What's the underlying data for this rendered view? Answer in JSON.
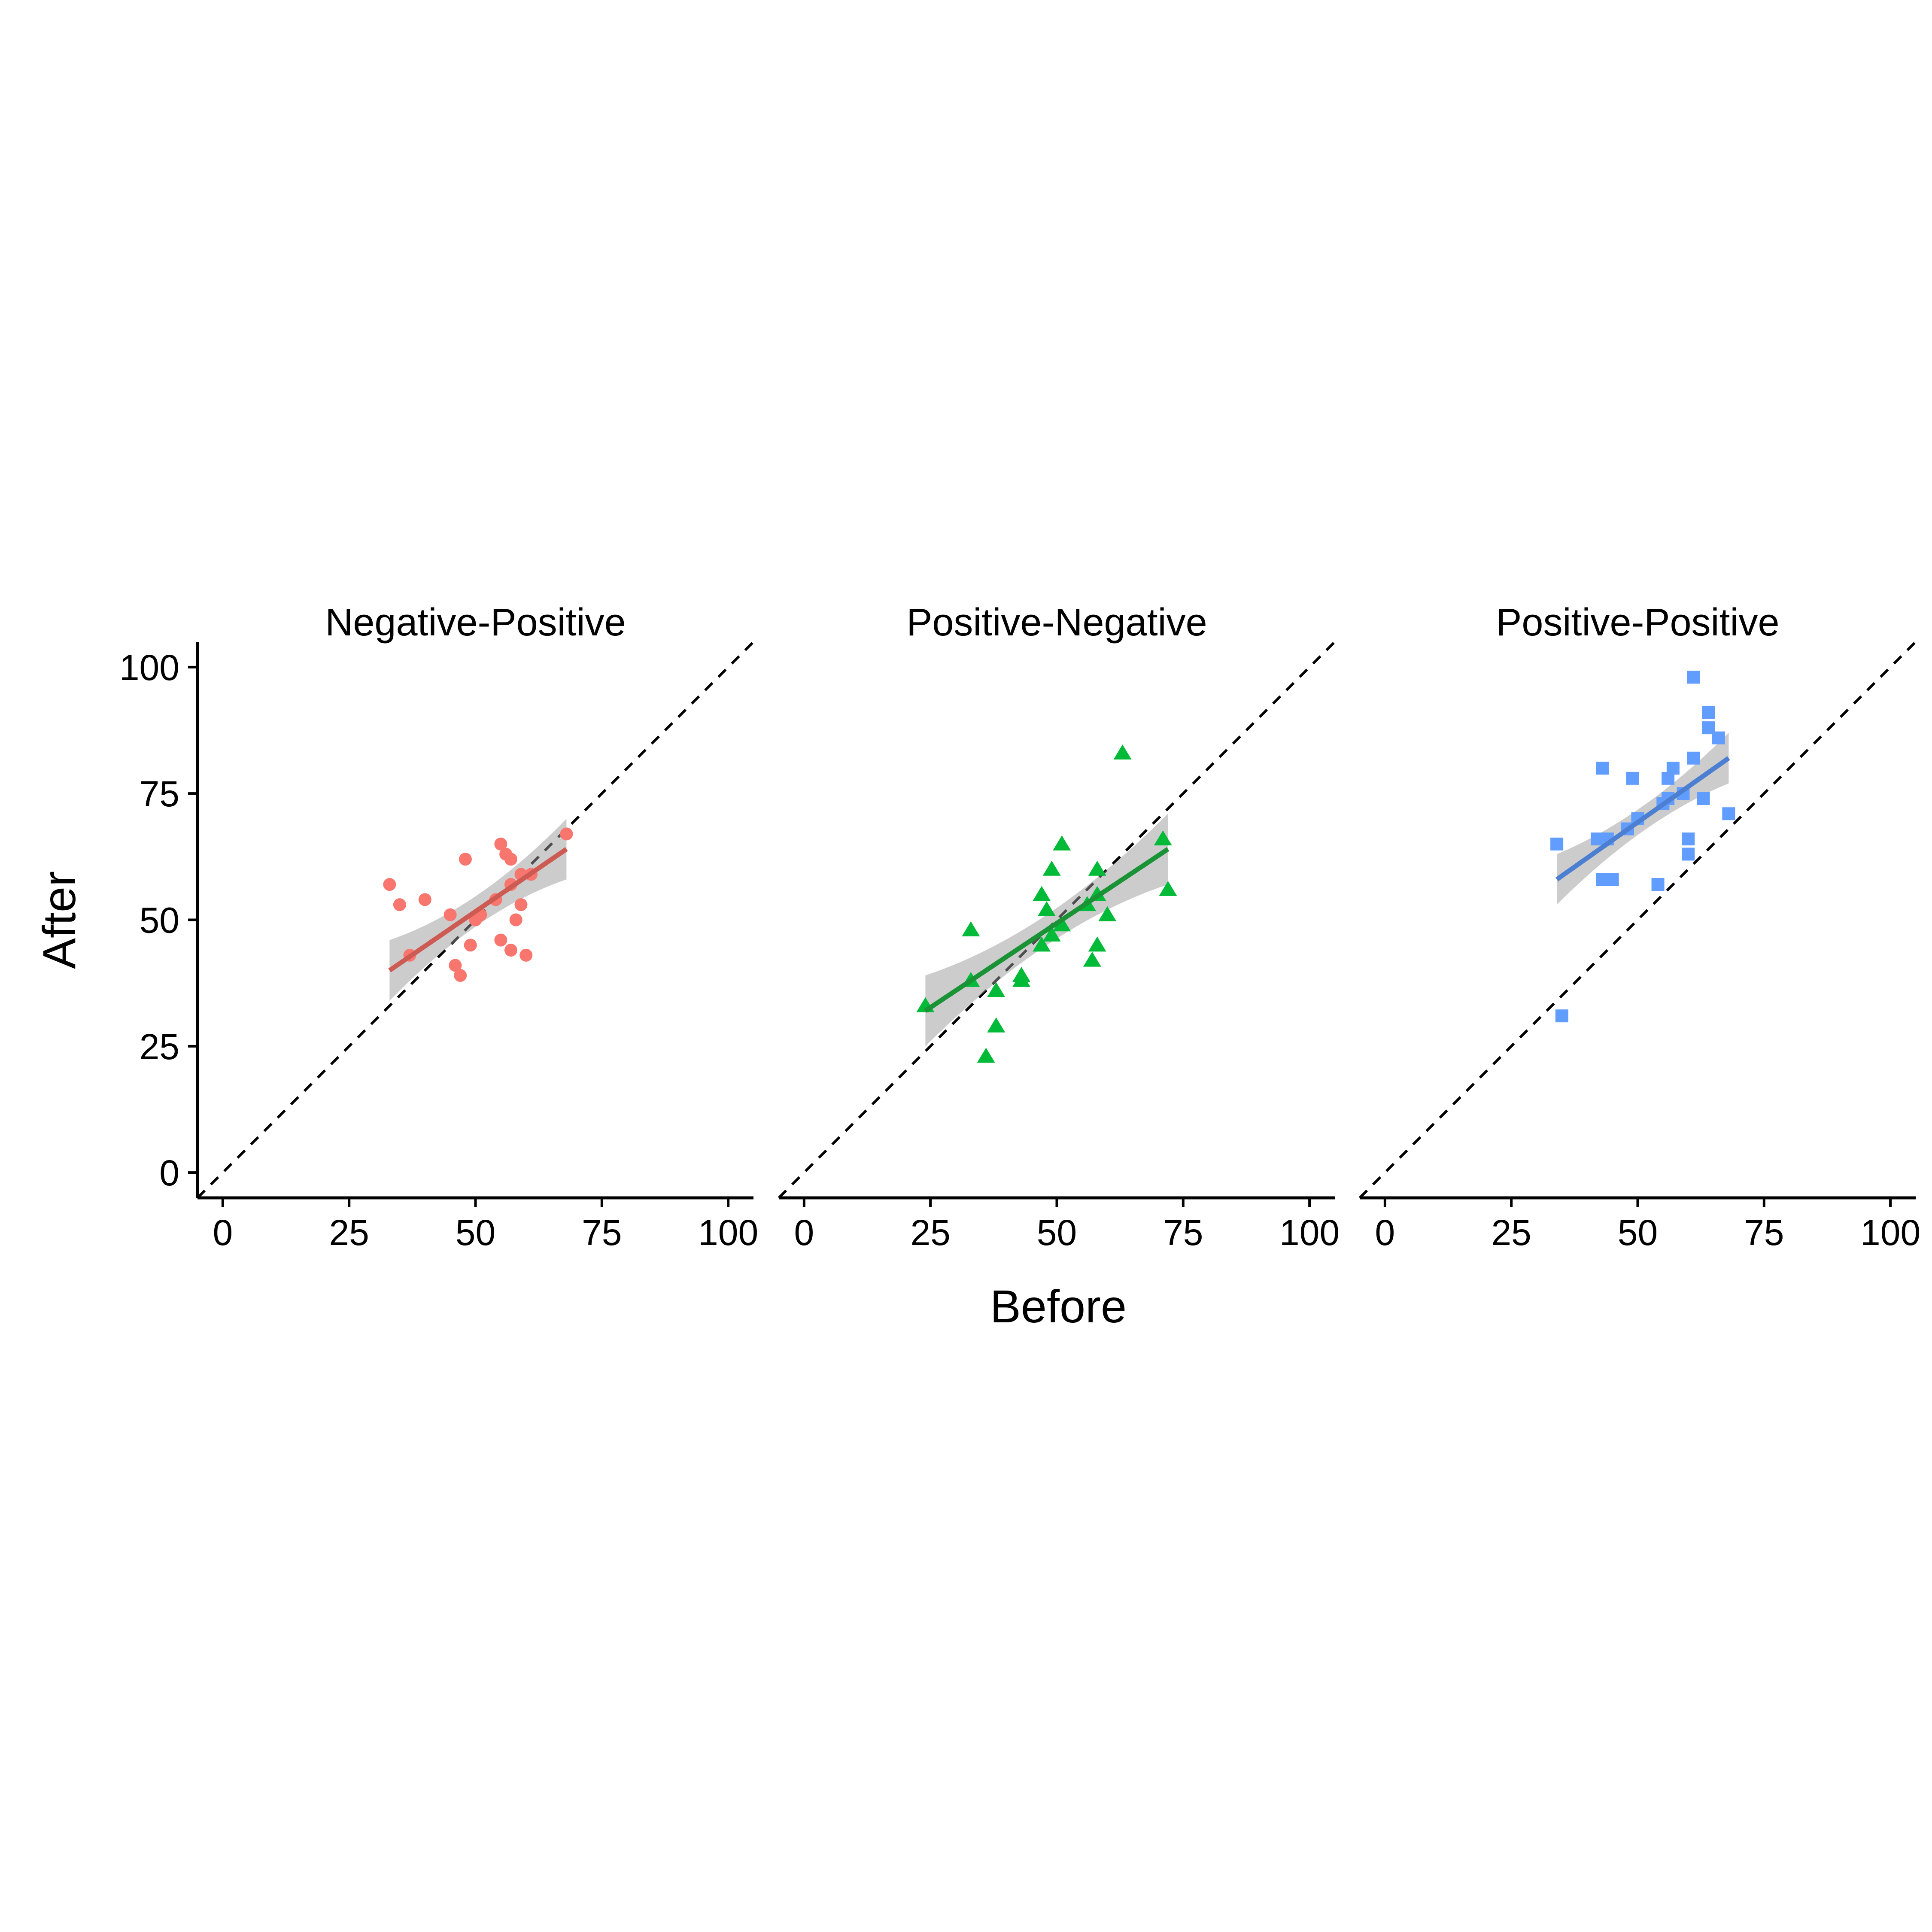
{
  "chart_data": {
    "type": "scatter",
    "xlabel": "Before",
    "ylabel": "After",
    "xlim": [
      -5,
      105
    ],
    "ylim": [
      -5,
      105
    ],
    "x_ticks": [
      0,
      25,
      50,
      75,
      100
    ],
    "y_ticks": [
      0,
      25,
      50,
      75,
      100
    ],
    "grid": false,
    "legend": "none",
    "reference_line": "y = x (dashed)",
    "panels": [
      {
        "title": "Negative-Positive",
        "color": "#F8766D",
        "fit_color": "#CD5B53",
        "marker": "circle",
        "fit": {
          "x": [
            33,
            68
          ],
          "y": [
            40,
            64
          ],
          "ci_halfwidth": [
            6,
            3,
            6
          ]
        },
        "points": [
          {
            "x": 33,
            "y": 57
          },
          {
            "x": 35,
            "y": 53
          },
          {
            "x": 37,
            "y": 43
          },
          {
            "x": 40,
            "y": 54
          },
          {
            "x": 45,
            "y": 51
          },
          {
            "x": 46,
            "y": 41
          },
          {
            "x": 47,
            "y": 39
          },
          {
            "x": 48,
            "y": 62
          },
          {
            "x": 49,
            "y": 45
          },
          {
            "x": 50,
            "y": 50
          },
          {
            "x": 51,
            "y": 51
          },
          {
            "x": 54,
            "y": 54
          },
          {
            "x": 55,
            "y": 65
          },
          {
            "x": 55,
            "y": 46
          },
          {
            "x": 56,
            "y": 63
          },
          {
            "x": 57,
            "y": 62
          },
          {
            "x": 57,
            "y": 57
          },
          {
            "x": 57,
            "y": 44
          },
          {
            "x": 58,
            "y": 50
          },
          {
            "x": 59,
            "y": 53
          },
          {
            "x": 59,
            "y": 59
          },
          {
            "x": 60,
            "y": 43
          },
          {
            "x": 61,
            "y": 59
          },
          {
            "x": 68,
            "y": 67
          }
        ]
      },
      {
        "title": "Positive-Negative",
        "color": "#00BA38",
        "fit_color": "#1A9236",
        "marker": "triangle",
        "fit": {
          "x": [
            24,
            72
          ],
          "y": [
            32,
            64
          ],
          "ci_halfwidth": [
            7,
            3,
            7
          ]
        },
        "points": [
          {
            "x": 24,
            "y": 33
          },
          {
            "x": 33,
            "y": 48
          },
          {
            "x": 33,
            "y": 38
          },
          {
            "x": 36,
            "y": 23
          },
          {
            "x": 38,
            "y": 36
          },
          {
            "x": 38,
            "y": 29
          },
          {
            "x": 43,
            "y": 39
          },
          {
            "x": 43,
            "y": 38
          },
          {
            "x": 47,
            "y": 55
          },
          {
            "x": 47,
            "y": 45
          },
          {
            "x": 48,
            "y": 52
          },
          {
            "x": 49,
            "y": 60
          },
          {
            "x": 49,
            "y": 47
          },
          {
            "x": 51,
            "y": 65
          },
          {
            "x": 51,
            "y": 49
          },
          {
            "x": 56,
            "y": 53
          },
          {
            "x": 57,
            "y": 42
          },
          {
            "x": 58,
            "y": 60
          },
          {
            "x": 58,
            "y": 55
          },
          {
            "x": 58,
            "y": 45
          },
          {
            "x": 60,
            "y": 51
          },
          {
            "x": 63,
            "y": 83
          },
          {
            "x": 71,
            "y": 66
          },
          {
            "x": 72,
            "y": 56
          }
        ]
      },
      {
        "title": "Positive-Positive",
        "color": "#619CFF",
        "fit_color": "#4C7FD1",
        "marker": "square",
        "fit": {
          "x": [
            34,
            68
          ],
          "y": [
            58,
            82
          ],
          "ci_halfwidth": [
            5,
            2.5,
            5
          ]
        },
        "points": [
          {
            "x": 34,
            "y": 65
          },
          {
            "x": 35,
            "y": 31
          },
          {
            "x": 42,
            "y": 66
          },
          {
            "x": 43,
            "y": 80
          },
          {
            "x": 43,
            "y": 58
          },
          {
            "x": 44,
            "y": 66
          },
          {
            "x": 45,
            "y": 58
          },
          {
            "x": 48,
            "y": 68
          },
          {
            "x": 49,
            "y": 78
          },
          {
            "x": 50,
            "y": 70
          },
          {
            "x": 54,
            "y": 57
          },
          {
            "x": 55,
            "y": 73
          },
          {
            "x": 56,
            "y": 78
          },
          {
            "x": 56,
            "y": 74
          },
          {
            "x": 57,
            "y": 80
          },
          {
            "x": 59,
            "y": 75
          },
          {
            "x": 60,
            "y": 66
          },
          {
            "x": 60,
            "y": 63
          },
          {
            "x": 61,
            "y": 98
          },
          {
            "x": 61,
            "y": 82
          },
          {
            "x": 63,
            "y": 74
          },
          {
            "x": 64,
            "y": 91
          },
          {
            "x": 64,
            "y": 88
          },
          {
            "x": 66,
            "y": 86
          },
          {
            "x": 68,
            "y": 71
          }
        ]
      }
    ]
  }
}
